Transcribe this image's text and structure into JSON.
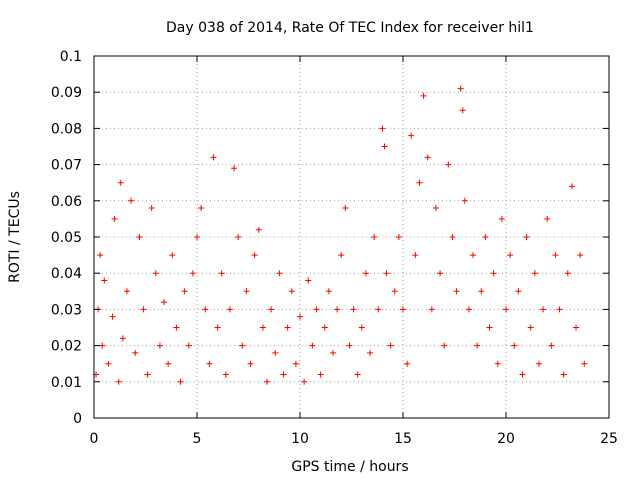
{
  "chart_data": {
    "type": "scatter",
    "title": "Day 038 of 2014, Rate Of TEC Index for receiver hil1",
    "xlabel": "GPS time / hours",
    "ylabel": "ROTI / TECUs",
    "xlim": [
      0,
      25
    ],
    "ylim": [
      0,
      0.1
    ],
    "xticks": [
      0,
      5,
      10,
      15,
      20,
      25
    ],
    "xtick_labels": [
      "0",
      "5",
      "10",
      "15",
      "20",
      "25"
    ],
    "yticks": [
      0,
      0.01,
      0.02,
      0.03,
      0.04,
      0.05,
      0.06,
      0.07,
      0.08,
      0.09,
      0.1
    ],
    "ytick_labels": [
      "0",
      "0.01",
      "0.02",
      "0.03",
      "0.04",
      "0.05",
      "0.06",
      "0.07",
      "0.08",
      "0.09",
      "0.1"
    ],
    "grid": true,
    "marker": "+",
    "color": "#ff0000",
    "series": [
      {
        "name": "ROTI",
        "points": [
          [
            0.1,
            0.012
          ],
          [
            0.2,
            0.03
          ],
          [
            0.3,
            0.045
          ],
          [
            0.4,
            0.02
          ],
          [
            0.5,
            0.038
          ],
          [
            0.7,
            0.015
          ],
          [
            0.9,
            0.028
          ],
          [
            1.0,
            0.055
          ],
          [
            1.2,
            0.01
          ],
          [
            1.3,
            0.065
          ],
          [
            1.4,
            0.022
          ],
          [
            1.6,
            0.035
          ],
          [
            1.8,
            0.06
          ],
          [
            2.0,
            0.018
          ],
          [
            2.2,
            0.05
          ],
          [
            2.4,
            0.03
          ],
          [
            2.6,
            0.012
          ],
          [
            2.8,
            0.058
          ],
          [
            3.0,
            0.04
          ],
          [
            3.2,
            0.02
          ],
          [
            3.4,
            0.032
          ],
          [
            3.6,
            0.015
          ],
          [
            3.8,
            0.045
          ],
          [
            4.0,
            0.025
          ],
          [
            4.2,
            0.01
          ],
          [
            4.4,
            0.035
          ],
          [
            4.6,
            0.02
          ],
          [
            4.8,
            0.04
          ],
          [
            5.0,
            0.05
          ],
          [
            5.2,
            0.058
          ],
          [
            5.4,
            0.03
          ],
          [
            5.6,
            0.015
          ],
          [
            5.8,
            0.072
          ],
          [
            6.0,
            0.025
          ],
          [
            6.2,
            0.04
          ],
          [
            6.4,
            0.012
          ],
          [
            6.6,
            0.03
          ],
          [
            6.8,
            0.069
          ],
          [
            7.0,
            0.05
          ],
          [
            7.2,
            0.02
          ],
          [
            7.4,
            0.035
          ],
          [
            7.6,
            0.015
          ],
          [
            7.8,
            0.045
          ],
          [
            8.0,
            0.052
          ],
          [
            8.2,
            0.025
          ],
          [
            8.4,
            0.01
          ],
          [
            8.6,
            0.03
          ],
          [
            8.8,
            0.018
          ],
          [
            9.0,
            0.04
          ],
          [
            9.2,
            0.012
          ],
          [
            9.4,
            0.025
          ],
          [
            9.6,
            0.035
          ],
          [
            9.8,
            0.015
          ],
          [
            10.0,
            0.028
          ],
          [
            10.2,
            0.01
          ],
          [
            10.4,
            0.038
          ],
          [
            10.6,
            0.02
          ],
          [
            10.8,
            0.03
          ],
          [
            11.0,
            0.012
          ],
          [
            11.2,
            0.025
          ],
          [
            11.4,
            0.035
          ],
          [
            11.6,
            0.018
          ],
          [
            11.8,
            0.03
          ],
          [
            12.0,
            0.045
          ],
          [
            12.2,
            0.058
          ],
          [
            12.4,
            0.02
          ],
          [
            12.6,
            0.03
          ],
          [
            12.8,
            0.012
          ],
          [
            13.0,
            0.025
          ],
          [
            13.2,
            0.04
          ],
          [
            13.4,
            0.018
          ],
          [
            13.6,
            0.05
          ],
          [
            13.8,
            0.03
          ],
          [
            14.0,
            0.08
          ],
          [
            14.1,
            0.075
          ],
          [
            14.2,
            0.04
          ],
          [
            14.4,
            0.02
          ],
          [
            14.6,
            0.035
          ],
          [
            14.8,
            0.05
          ],
          [
            15.0,
            0.03
          ],
          [
            15.2,
            0.015
          ],
          [
            15.4,
            0.078
          ],
          [
            15.6,
            0.045
          ],
          [
            15.8,
            0.065
          ],
          [
            16.0,
            0.089
          ],
          [
            16.2,
            0.072
          ],
          [
            16.4,
            0.03
          ],
          [
            16.6,
            0.058
          ],
          [
            16.8,
            0.04
          ],
          [
            17.0,
            0.02
          ],
          [
            17.2,
            0.07
          ],
          [
            17.4,
            0.05
          ],
          [
            17.6,
            0.035
          ],
          [
            17.8,
            0.091
          ],
          [
            17.9,
            0.085
          ],
          [
            18.0,
            0.06
          ],
          [
            18.2,
            0.03
          ],
          [
            18.4,
            0.045
          ],
          [
            18.6,
            0.02
          ],
          [
            18.8,
            0.035
          ],
          [
            19.0,
            0.05
          ],
          [
            19.2,
            0.025
          ],
          [
            19.4,
            0.04
          ],
          [
            19.6,
            0.015
          ],
          [
            19.8,
            0.055
          ],
          [
            20.0,
            0.03
          ],
          [
            20.2,
            0.045
          ],
          [
            20.4,
            0.02
          ],
          [
            20.6,
            0.035
          ],
          [
            20.8,
            0.012
          ],
          [
            21.0,
            0.05
          ],
          [
            21.2,
            0.025
          ],
          [
            21.4,
            0.04
          ],
          [
            21.6,
            0.015
          ],
          [
            21.8,
            0.03
          ],
          [
            22.0,
            0.055
          ],
          [
            22.2,
            0.02
          ],
          [
            22.4,
            0.045
          ],
          [
            22.6,
            0.03
          ],
          [
            22.8,
            0.012
          ],
          [
            23.0,
            0.04
          ],
          [
            23.2,
            0.064
          ],
          [
            23.4,
            0.025
          ],
          [
            23.6,
            0.045
          ],
          [
            23.8,
            0.015
          ]
        ]
      }
    ]
  }
}
